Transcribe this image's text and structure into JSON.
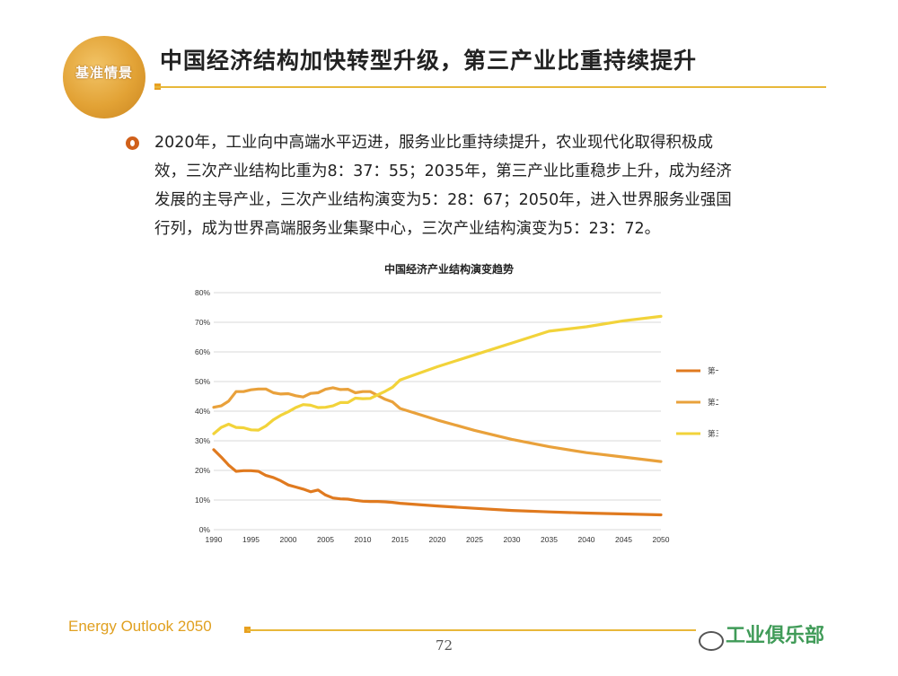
{
  "header": {
    "logo_text": "基准情景",
    "title": "中国经济结构加快转型升级，第三产业比重持续提升"
  },
  "body": {
    "lines": [
      "2020年，工业向中高端水平迈进，服务业比重持续提升，农业现代化取得积极成",
      "效，三次产业结构比重为8：37：55；2035年，第三产业比重稳步上升，成为经济",
      "发展的主导产业，三次产业结构演变为5：28：67；2050年，进入世界服务业强国",
      "行列，成为世界高端服务业集聚中心，三次产业结构演变为5：23：72。"
    ]
  },
  "footer": {
    "report_name": "Energy Outlook 2050",
    "page_number": "72",
    "watermark": "工业俱乐部"
  },
  "colors": {
    "primary": "#e07a1f",
    "secondary": "#e9a13b",
    "tertiary": "#f2d33a",
    "accent_line": "#e8b83a",
    "grid": "#d9d9d9"
  },
  "chart_data": {
    "type": "line",
    "title": "中国经济产业结构演变趋势",
    "xlabel": "",
    "ylabel": "",
    "ylim": [
      0,
      80
    ],
    "grid": true,
    "legend_position": "right",
    "x_ticks": [
      1990,
      1995,
      2000,
      2005,
      2010,
      2015,
      2020,
      2025,
      2030,
      2035,
      2040,
      2045,
      2050
    ],
    "y_ticks": [
      "0%",
      "10%",
      "20%",
      "30%",
      "40%",
      "50%",
      "60%",
      "70%",
      "80%"
    ],
    "series": [
      {
        "name": "第一产业",
        "color": "#e07a1f",
        "points": [
          [
            1990,
            27
          ],
          [
            1991,
            24.5
          ],
          [
            1992,
            21.8
          ],
          [
            1993,
            19.7
          ],
          [
            1994,
            19.9
          ],
          [
            1995,
            19.9
          ],
          [
            1996,
            19.7
          ],
          [
            1997,
            18.3
          ],
          [
            1998,
            17.6
          ],
          [
            1999,
            16.5
          ],
          [
            2000,
            15.1
          ],
          [
            2001,
            14.4
          ],
          [
            2002,
            13.7
          ],
          [
            2003,
            12.8
          ],
          [
            2004,
            13.4
          ],
          [
            2005,
            11.7
          ],
          [
            2006,
            10.7
          ],
          [
            2007,
            10.4
          ],
          [
            2008,
            10.3
          ],
          [
            2009,
            9.9
          ],
          [
            2010,
            9.6
          ],
          [
            2011,
            9.5
          ],
          [
            2012,
            9.5
          ],
          [
            2013,
            9.4
          ],
          [
            2014,
            9.2
          ],
          [
            2015,
            8.9
          ],
          [
            2020,
            8
          ],
          [
            2025,
            7.2
          ],
          [
            2030,
            6.5
          ],
          [
            2035,
            6
          ],
          [
            2040,
            5.6
          ],
          [
            2045,
            5.3
          ],
          [
            2050,
            5
          ]
        ]
      },
      {
        "name": "第二产业",
        "color": "#e9a13b",
        "points": [
          [
            1990,
            41.3
          ],
          [
            1991,
            41.8
          ],
          [
            1992,
            43.4
          ],
          [
            1993,
            46.6
          ],
          [
            1994,
            46.6
          ],
          [
            1995,
            47.2
          ],
          [
            1996,
            47.5
          ],
          [
            1997,
            47.5
          ],
          [
            1998,
            46.2
          ],
          [
            1999,
            45.8
          ],
          [
            2000,
            45.9
          ],
          [
            2001,
            45.2
          ],
          [
            2002,
            44.8
          ],
          [
            2003,
            46
          ],
          [
            2004,
            46.2
          ],
          [
            2005,
            47.4
          ],
          [
            2006,
            47.9
          ],
          [
            2007,
            47.3
          ],
          [
            2008,
            47.4
          ],
          [
            2009,
            46.2
          ],
          [
            2010,
            46.6
          ],
          [
            2011,
            46.6
          ],
          [
            2012,
            45.3
          ],
          [
            2013,
            44
          ],
          [
            2014,
            43.1
          ],
          [
            2015,
            40.9
          ],
          [
            2020,
            37
          ],
          [
            2025,
            33.5
          ],
          [
            2030,
            30.5
          ],
          [
            2035,
            28
          ],
          [
            2040,
            26
          ],
          [
            2045,
            24.5
          ],
          [
            2050,
            23
          ]
        ]
      },
      {
        "name": "第三产业",
        "color": "#f2d33a",
        "points": [
          [
            1990,
            32.4
          ],
          [
            1991,
            34.5
          ],
          [
            1992,
            35.6
          ],
          [
            1993,
            34.5
          ],
          [
            1994,
            34.4
          ],
          [
            1995,
            33.7
          ],
          [
            1996,
            33.6
          ],
          [
            1997,
            35
          ],
          [
            1998,
            37.1
          ],
          [
            1999,
            38.6
          ],
          [
            2000,
            39.8
          ],
          [
            2001,
            41.2
          ],
          [
            2002,
            42.2
          ],
          [
            2003,
            42
          ],
          [
            2004,
            41.2
          ],
          [
            2005,
            41.3
          ],
          [
            2006,
            41.8
          ],
          [
            2007,
            42.9
          ],
          [
            2008,
            42.9
          ],
          [
            2009,
            44.4
          ],
          [
            2010,
            44.2
          ],
          [
            2011,
            44.3
          ],
          [
            2012,
            45.5
          ],
          [
            2013,
            46.7
          ],
          [
            2014,
            48.1
          ],
          [
            2015,
            50.5
          ],
          [
            2020,
            55
          ],
          [
            2025,
            59
          ],
          [
            2030,
            63
          ],
          [
            2035,
            67
          ],
          [
            2040,
            68.5
          ],
          [
            2045,
            70.5
          ],
          [
            2050,
            72
          ]
        ]
      }
    ]
  }
}
